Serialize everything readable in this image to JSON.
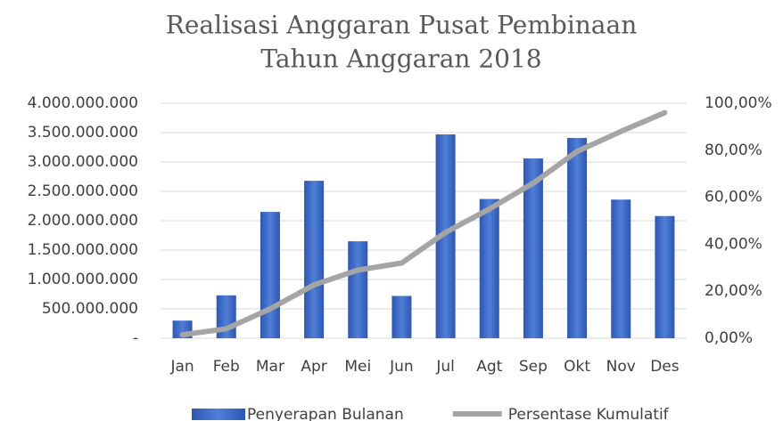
{
  "chart_data": {
    "type": "bar_line",
    "title": [
      "Realisasi Anggaran Pusat Pembinaan",
      "Tahun Anggaran 2018"
    ],
    "categories": [
      "Jan",
      "Feb",
      "Mar",
      "Apr",
      "Mei",
      "Jun",
      "Jul",
      "Agt",
      "Sep",
      "Okt",
      "Nov",
      "Des"
    ],
    "series": [
      {
        "name": "Penyerapan Bulanan",
        "color": "#4472c4",
        "type": "bar",
        "values": [
          300000000,
          730000000,
          2150000000,
          2680000000,
          1650000000,
          720000000,
          3470000000,
          2370000000,
          3060000000,
          3410000000,
          2360000000,
          2080000000
        ]
      },
      {
        "name": "Persentase Kumulatif",
        "color": "#a5a5a5",
        "type": "line",
        "axis": "y2",
        "values": [
          1.5,
          4,
          12.5,
          22.7,
          29,
          32,
          45,
          55,
          66,
          79.5,
          88,
          96
        ]
      }
    ],
    "ylim": [
      0,
      4000000000
    ],
    "yticks": [
      {
        "value": 0,
        "label": "-"
      },
      {
        "value": 500000000,
        "label": "500.000.000"
      },
      {
        "value": 1000000000,
        "label": "1.000.000.000"
      },
      {
        "value": 1500000000,
        "label": "1.500.000.000"
      },
      {
        "value": 2000000000,
        "label": "2.000.000.000"
      },
      {
        "value": 2500000000,
        "label": "2.500.000.000"
      },
      {
        "value": 3000000000,
        "label": "3.000.000.000"
      },
      {
        "value": 3500000000,
        "label": "3.500.000.000"
      },
      {
        "value": 4000000000,
        "label": "4.000.000.000"
      }
    ],
    "y2lim": [
      0,
      100
    ],
    "y2ticks": [
      {
        "value": 0,
        "label": "0,00%"
      },
      {
        "value": 20,
        "label": "20,00%"
      },
      {
        "value": 40,
        "label": "40,00%"
      },
      {
        "value": 60,
        "label": "60,00%"
      },
      {
        "value": 80,
        "label": "80,00%"
      },
      {
        "value": 100,
        "label": "100,00%"
      }
    ],
    "grid": true,
    "legend": "bottom"
  }
}
